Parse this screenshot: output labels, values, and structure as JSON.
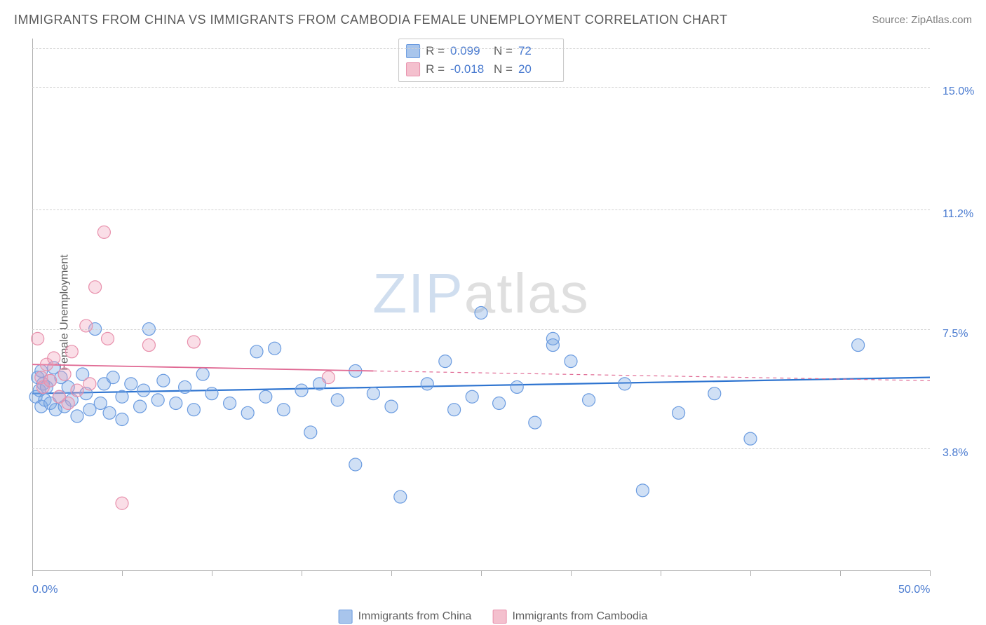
{
  "header": {
    "title": "IMMIGRANTS FROM CHINA VS IMMIGRANTS FROM CAMBODIA FEMALE UNEMPLOYMENT CORRELATION CHART",
    "source": "Source: ZipAtlas.com"
  },
  "watermark": {
    "z": "ZIP",
    "rest": "atlas"
  },
  "chart": {
    "type": "scatter",
    "background_color": "#ffffff",
    "grid_color": "#d0d0d0",
    "axis_color": "#b0b0b0",
    "label_color": "#4a7bd0",
    "yaxis_title": "Female Unemployment",
    "xlim": [
      0,
      50
    ],
    "ylim": [
      0,
      16.5
    ],
    "ytick_positions": [
      3.8,
      7.5,
      11.2,
      15.0
    ],
    "ytick_labels": [
      "3.8%",
      "7.5%",
      "11.2%",
      "15.0%"
    ],
    "xtick_positions": [
      0,
      5,
      10,
      15,
      20,
      25,
      30,
      35,
      40,
      45,
      50
    ],
    "xtick_labels_shown": {
      "0": "0.0%",
      "50": "50.0%"
    },
    "marker_radius": 9,
    "marker_stroke_width": 1.2,
    "series": [
      {
        "id": "china",
        "label": "Immigrants from China",
        "fill": "rgba(120,165,225,0.35)",
        "stroke": "#6a9be0",
        "swatch_fill": "#a8c5ec",
        "swatch_border": "#6a9be0",
        "line_color": "#2e74d0",
        "line_width": 2.2,
        "line_dash": "",
        "regression": {
          "x1": 0,
          "y1": 5.5,
          "x2": 50,
          "y2": 6.0
        },
        "points": [
          [
            0.2,
            5.4
          ],
          [
            0.3,
            6.0
          ],
          [
            0.4,
            5.6
          ],
          [
            0.5,
            5.1
          ],
          [
            0.5,
            6.2
          ],
          [
            0.6,
            5.8
          ],
          [
            0.7,
            5.3
          ],
          [
            0.8,
            5.7
          ],
          [
            1.0,
            5.9
          ],
          [
            1.0,
            5.2
          ],
          [
            1.2,
            6.3
          ],
          [
            1.3,
            5.0
          ],
          [
            1.5,
            5.4
          ],
          [
            1.6,
            6.0
          ],
          [
            1.8,
            5.1
          ],
          [
            2.0,
            5.7
          ],
          [
            2.2,
            5.3
          ],
          [
            2.5,
            4.8
          ],
          [
            2.8,
            6.1
          ],
          [
            3.0,
            5.5
          ],
          [
            3.2,
            5.0
          ],
          [
            3.5,
            7.5
          ],
          [
            3.8,
            5.2
          ],
          [
            4.0,
            5.8
          ],
          [
            4.3,
            4.9
          ],
          [
            4.5,
            6.0
          ],
          [
            5.0,
            5.4
          ],
          [
            5.0,
            4.7
          ],
          [
            5.5,
            5.8
          ],
          [
            6.0,
            5.1
          ],
          [
            6.2,
            5.6
          ],
          [
            6.5,
            7.5
          ],
          [
            7.0,
            5.3
          ],
          [
            7.3,
            5.9
          ],
          [
            8.0,
            5.2
          ],
          [
            8.5,
            5.7
          ],
          [
            9.0,
            5.0
          ],
          [
            9.5,
            6.1
          ],
          [
            10.0,
            5.5
          ],
          [
            11.0,
            5.2
          ],
          [
            12.0,
            4.9
          ],
          [
            12.5,
            6.8
          ],
          [
            13.0,
            5.4
          ],
          [
            13.5,
            6.9
          ],
          [
            14.0,
            5.0
          ],
          [
            15.0,
            5.6
          ],
          [
            15.5,
            4.3
          ],
          [
            16.0,
            5.8
          ],
          [
            17.0,
            5.3
          ],
          [
            18.0,
            6.2
          ],
          [
            18.0,
            3.3
          ],
          [
            19.0,
            5.5
          ],
          [
            20.0,
            5.1
          ],
          [
            20.5,
            2.3
          ],
          [
            22.0,
            5.8
          ],
          [
            23.0,
            6.5
          ],
          [
            23.5,
            5.0
          ],
          [
            24.5,
            5.4
          ],
          [
            25.0,
            8.0
          ],
          [
            26.0,
            5.2
          ],
          [
            27.0,
            5.7
          ],
          [
            28.0,
            4.6
          ],
          [
            29.0,
            7.2
          ],
          [
            29.0,
            7.0
          ],
          [
            30.0,
            6.5
          ],
          [
            31.0,
            5.3
          ],
          [
            33.0,
            5.8
          ],
          [
            34.0,
            2.5
          ],
          [
            36.0,
            4.9
          ],
          [
            38.0,
            5.5
          ],
          [
            40.0,
            4.1
          ],
          [
            46.0,
            7.0
          ]
        ]
      },
      {
        "id": "cambodia",
        "label": "Immigrants from Cambodia",
        "fill": "rgba(240,160,185,0.35)",
        "stroke": "#e890ac",
        "swatch_fill": "#f4c0ce",
        "swatch_border": "#e890ac",
        "line_color": "#e06a94",
        "line_width": 1.8,
        "line_dash": "",
        "dash_segment": "5,5",
        "regression_solid": {
          "x1": 0,
          "y1": 6.4,
          "x2": 19,
          "y2": 6.2
        },
        "regression_dash": {
          "x1": 19,
          "y1": 6.2,
          "x2": 50,
          "y2": 5.9
        },
        "points": [
          [
            0.3,
            7.2
          ],
          [
            0.5,
            6.0
          ],
          [
            0.6,
            5.7
          ],
          [
            0.8,
            6.4
          ],
          [
            1.0,
            5.9
          ],
          [
            1.2,
            6.6
          ],
          [
            1.5,
            5.4
          ],
          [
            1.8,
            6.1
          ],
          [
            2.0,
            5.2
          ],
          [
            2.2,
            6.8
          ],
          [
            2.5,
            5.6
          ],
          [
            3.0,
            7.6
          ],
          [
            3.2,
            5.8
          ],
          [
            3.5,
            8.8
          ],
          [
            4.0,
            10.5
          ],
          [
            4.2,
            7.2
          ],
          [
            5.0,
            2.1
          ],
          [
            6.5,
            7.0
          ],
          [
            9.0,
            7.1
          ],
          [
            16.5,
            6.0
          ]
        ]
      }
    ],
    "stats": [
      {
        "series": "china",
        "R": "0.099",
        "N": "72"
      },
      {
        "series": "cambodia",
        "R": "-0.018",
        "N": "20"
      }
    ]
  }
}
